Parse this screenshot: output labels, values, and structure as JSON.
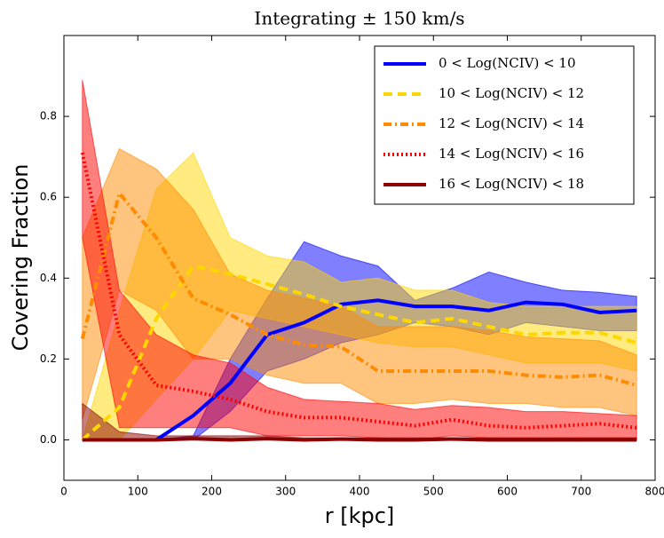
{
  "chart_data": {
    "type": "line",
    "title": "Integrating ± 150 km/s",
    "xlabel": "r [kpc]",
    "ylabel": "Covering Fraction",
    "x": [
      25,
      75,
      125,
      175,
      225,
      275,
      325,
      375,
      425,
      475,
      525,
      575,
      625,
      675,
      725,
      775
    ],
    "xlim": [
      0,
      800
    ],
    "xticks": [
      0,
      100,
      200,
      300,
      400,
      500,
      600,
      700,
      800
    ],
    "ylim": [
      -0.1,
      1.0
    ],
    "yticks": [
      {
        "value": 0,
        "label": "0.0"
      },
      0.2,
      0.4,
      0.6,
      0.8
    ],
    "legend": "upper right",
    "series": [
      {
        "name": "0 < Log(NCIV) < 10",
        "color": "#0000ff",
        "style": "solid",
        "values": [
          0,
          0,
          0,
          0.06,
          0.14,
          0.26,
          0.29,
          0.335,
          0.345,
          0.33,
          0.33,
          0.32,
          0.34,
          0.335,
          0.315,
          0.32
        ],
        "upper": [
          0,
          0,
          0,
          0.01,
          0.2,
          0.35,
          0.49,
          0.455,
          0.43,
          0.345,
          0.375,
          0.415,
          0.39,
          0.37,
          0.365,
          0.355
        ],
        "lower": [
          0,
          0,
          0,
          0,
          0.07,
          0.17,
          0.2,
          0.24,
          0.26,
          0.29,
          0.28,
          0.26,
          0.29,
          0.28,
          0.27,
          0.27
        ]
      },
      {
        "name": "10 < Log(NCIV) < 12",
        "color": "#ffd700",
        "style": "dashed",
        "values": [
          0,
          0.08,
          0.3,
          0.43,
          0.41,
          0.385,
          0.36,
          0.33,
          0.31,
          0.29,
          0.3,
          0.28,
          0.26,
          0.265,
          0.265,
          0.24
        ],
        "upper": [
          0,
          0.32,
          0.62,
          0.71,
          0.5,
          0.455,
          0.44,
          0.39,
          0.4,
          0.37,
          0.37,
          0.34,
          0.33,
          0.33,
          0.33,
          0.33
        ],
        "lower": [
          0,
          0,
          0.1,
          0.2,
          0.32,
          0.3,
          0.28,
          0.26,
          0.24,
          0.23,
          0.23,
          0.21,
          0.19,
          0.19,
          0.19,
          0.17
        ]
      },
      {
        "name": "12 < Log(NCIV) < 14",
        "color": "#ff8c00",
        "style": "dashdot",
        "values": [
          0.25,
          0.61,
          0.5,
          0.35,
          0.31,
          0.26,
          0.235,
          0.23,
          0.17,
          0.17,
          0.17,
          0.17,
          0.16,
          0.155,
          0.16,
          0.135
        ],
        "upper": [
          0.5,
          0.72,
          0.67,
          0.57,
          0.41,
          0.37,
          0.35,
          0.33,
          0.28,
          0.28,
          0.28,
          0.27,
          0.255,
          0.25,
          0.245,
          0.21
        ],
        "lower": [
          0.05,
          0.37,
          0.32,
          0.2,
          0.2,
          0.16,
          0.14,
          0.14,
          0.09,
          0.09,
          0.1,
          0.09,
          0.09,
          0.08,
          0.08,
          0.06
        ]
      },
      {
        "name": "14 < Log(NCIV) < 16",
        "color": "#ff0000",
        "style": "dotted",
        "values": [
          0.71,
          0.26,
          0.135,
          0.12,
          0.1,
          0.07,
          0.055,
          0.055,
          0.045,
          0.035,
          0.05,
          0.035,
          0.03,
          0.035,
          0.04,
          0.03
        ],
        "upper": [
          0.89,
          0.37,
          0.26,
          0.21,
          0.19,
          0.13,
          0.1,
          0.095,
          0.09,
          0.075,
          0.085,
          0.08,
          0.07,
          0.07,
          0.065,
          0.06
        ],
        "lower": [
          0.5,
          0.03,
          0.03,
          0.03,
          0.03,
          0.01,
          0.01,
          0.01,
          0.005,
          0,
          0.01,
          0.005,
          0.005,
          0.005,
          0.005,
          0.005
        ]
      },
      {
        "name": "16 < Log(NCIV) < 18",
        "color": "#8b0000",
        "style": "solid",
        "values": [
          0,
          0,
          0,
          0.003,
          0,
          0.003,
          0,
          0.002,
          0,
          0,
          0.002,
          0,
          0,
          0,
          0,
          0
        ],
        "upper": [
          0.09,
          0.02,
          0.01,
          0.01,
          0.01,
          0.01,
          0.005,
          0.005,
          0.005,
          0.005,
          0.005,
          0.005,
          0.005,
          0.005,
          0.005,
          0.005
        ],
        "lower": [
          0,
          0,
          0,
          0,
          0,
          0,
          0,
          0,
          0,
          0,
          0,
          0,
          0,
          0,
          0,
          0
        ]
      }
    ]
  }
}
